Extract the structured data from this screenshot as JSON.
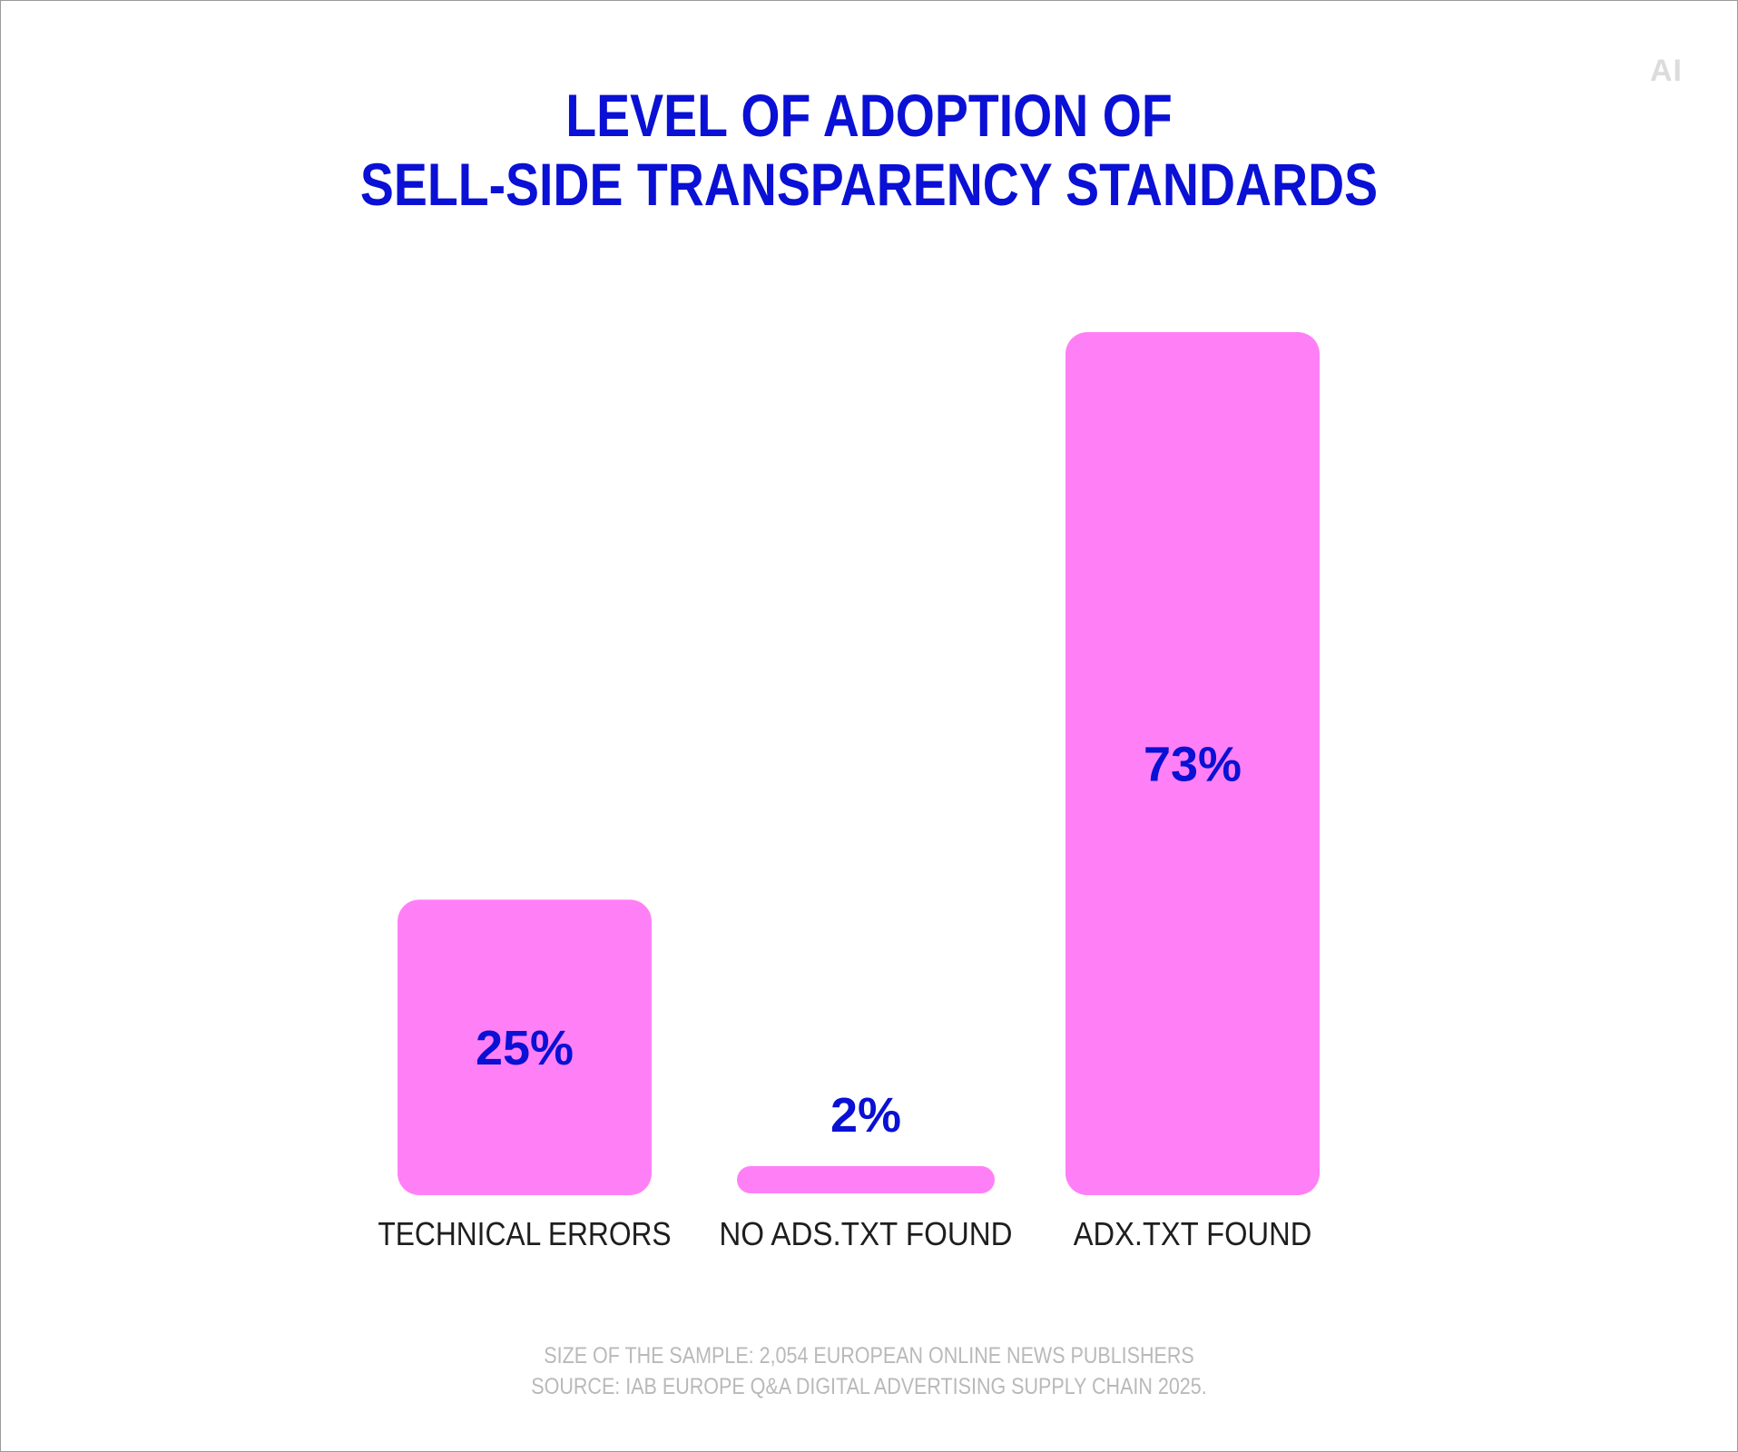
{
  "logo": "AI",
  "title_lines": [
    "LEVEL OF ADOPTION OF",
    "SELL-SIDE TRANSPARENCY STANDARDS"
  ],
  "colors": {
    "title": "#0a10d4",
    "bar": "#ff80f6",
    "value_label": "#0a10d4",
    "category_label": "#1e1e1e",
    "footnote": "#b9b9b9"
  },
  "chart_data": {
    "type": "bar",
    "title": "LEVEL OF ADOPTION OF SELL-SIDE TRANSPARENCY STANDARDS",
    "categories": [
      "TECHNICAL ERRORS",
      "NO ADS.TXT FOUND",
      "ADX.TXT FOUND"
    ],
    "values": [
      25,
      2,
      73
    ],
    "value_labels": [
      "25%",
      "2%",
      "73%"
    ],
    "unit": "%",
    "ylim": [
      0,
      73
    ],
    "grid": false,
    "legend": "none"
  },
  "footnote": {
    "line1": "SIZE OF THE SAMPLE: 2,054 EUROPEAN ONLINE NEWS PUBLISHERS",
    "line2": "SOURCE: IAB EUROPE Q&A DIGITAL ADVERTISING SUPPLY CHAIN 2025."
  }
}
